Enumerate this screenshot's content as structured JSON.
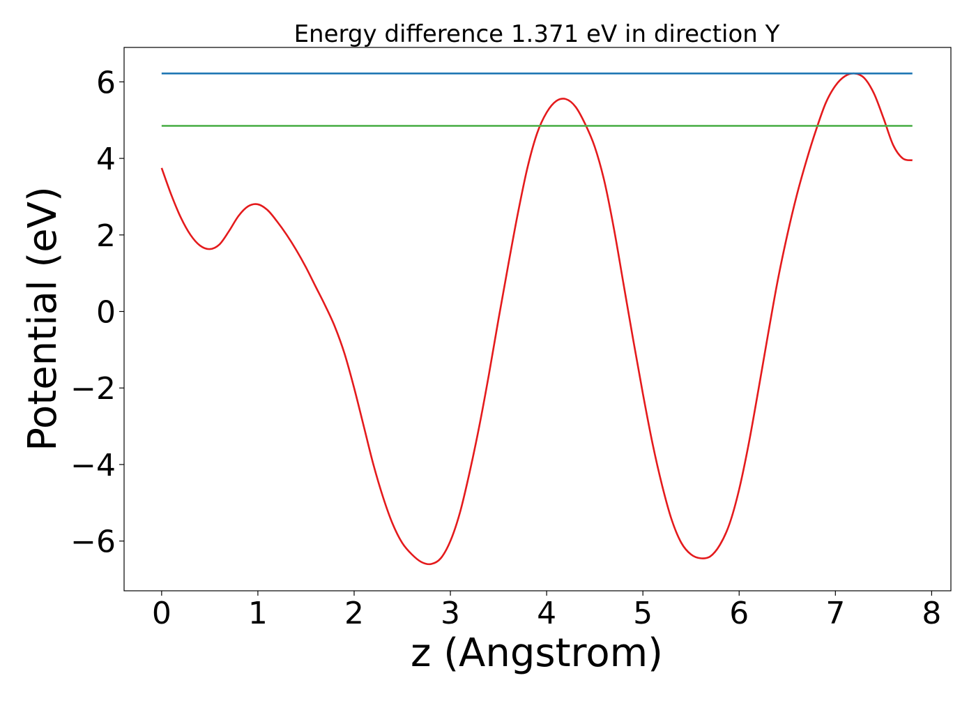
{
  "chart_data": {
    "type": "line",
    "title": "Energy difference 1.371 eV in direction Y",
    "xlabel": "z (Angstrom)",
    "ylabel": "Potential (eV)",
    "xlim": [
      -0.39,
      8.2
    ],
    "ylim": [
      -7.3,
      6.9
    ],
    "xticks": [
      0,
      1,
      2,
      3,
      4,
      5,
      6,
      7,
      8
    ],
    "yticks": [
      -6,
      -4,
      -2,
      0,
      2,
      4,
      6
    ],
    "xtick_labels": [
      "0",
      "1",
      "2",
      "3",
      "4",
      "5",
      "6",
      "7",
      "8"
    ],
    "ytick_labels": [
      "−6",
      "−4",
      "−2",
      "0",
      "2",
      "4",
      "6"
    ],
    "grid": false,
    "legend": "none",
    "series": [
      {
        "color": "#e41a1c",
        "kind": "curve",
        "points": [
          [
            0.0,
            3.75
          ],
          [
            0.1,
            3.05
          ],
          [
            0.2,
            2.45
          ],
          [
            0.3,
            2.0
          ],
          [
            0.4,
            1.72
          ],
          [
            0.5,
            1.63
          ],
          [
            0.6,
            1.75
          ],
          [
            0.7,
            2.1
          ],
          [
            0.8,
            2.5
          ],
          [
            0.9,
            2.75
          ],
          [
            1.0,
            2.8
          ],
          [
            1.1,
            2.65
          ],
          [
            1.2,
            2.35
          ],
          [
            1.3,
            2.0
          ],
          [
            1.4,
            1.6
          ],
          [
            1.5,
            1.15
          ],
          [
            1.6,
            0.65
          ],
          [
            1.7,
            0.15
          ],
          [
            1.8,
            -0.4
          ],
          [
            1.9,
            -1.1
          ],
          [
            2.0,
            -2.0
          ],
          [
            2.1,
            -3.0
          ],
          [
            2.2,
            -4.0
          ],
          [
            2.3,
            -4.85
          ],
          [
            2.4,
            -5.55
          ],
          [
            2.5,
            -6.05
          ],
          [
            2.6,
            -6.35
          ],
          [
            2.7,
            -6.55
          ],
          [
            2.8,
            -6.6
          ],
          [
            2.9,
            -6.45
          ],
          [
            3.0,
            -6.0
          ],
          [
            3.1,
            -5.25
          ],
          [
            3.2,
            -4.2
          ],
          [
            3.3,
            -3.0
          ],
          [
            3.4,
            -1.65
          ],
          [
            3.5,
            -0.2
          ],
          [
            3.6,
            1.2
          ],
          [
            3.7,
            2.55
          ],
          [
            3.8,
            3.75
          ],
          [
            3.9,
            4.65
          ],
          [
            4.0,
            5.2
          ],
          [
            4.1,
            5.5
          ],
          [
            4.2,
            5.55
          ],
          [
            4.3,
            5.35
          ],
          [
            4.4,
            4.9
          ],
          [
            4.5,
            4.3
          ],
          [
            4.6,
            3.4
          ],
          [
            4.7,
            2.15
          ],
          [
            4.8,
            0.7
          ],
          [
            4.9,
            -0.75
          ],
          [
            5.0,
            -2.15
          ],
          [
            5.1,
            -3.45
          ],
          [
            5.2,
            -4.55
          ],
          [
            5.3,
            -5.45
          ],
          [
            5.4,
            -6.05
          ],
          [
            5.5,
            -6.35
          ],
          [
            5.6,
            -6.45
          ],
          [
            5.7,
            -6.4
          ],
          [
            5.8,
            -6.1
          ],
          [
            5.9,
            -5.55
          ],
          [
            6.0,
            -4.65
          ],
          [
            6.1,
            -3.45
          ],
          [
            6.2,
            -2.05
          ],
          [
            6.3,
            -0.6
          ],
          [
            6.4,
            0.8
          ],
          [
            6.5,
            2.0
          ],
          [
            6.6,
            3.05
          ],
          [
            6.7,
            3.95
          ],
          [
            6.8,
            4.75
          ],
          [
            6.9,
            5.45
          ],
          [
            7.0,
            5.9
          ],
          [
            7.1,
            6.15
          ],
          [
            7.2,
            6.22
          ],
          [
            7.3,
            6.1
          ],
          [
            7.4,
            5.7
          ],
          [
            7.5,
            5.05
          ],
          [
            7.6,
            4.35
          ],
          [
            7.7,
            4.0
          ],
          [
            7.8,
            3.95
          ]
        ]
      },
      {
        "color": "#1f77b4",
        "kind": "hline",
        "y": 6.22,
        "x_range": [
          0.0,
          7.8
        ]
      },
      {
        "color": "#4daf4a",
        "kind": "hline",
        "y": 4.85,
        "x_range": [
          0.0,
          7.8
        ]
      }
    ]
  }
}
